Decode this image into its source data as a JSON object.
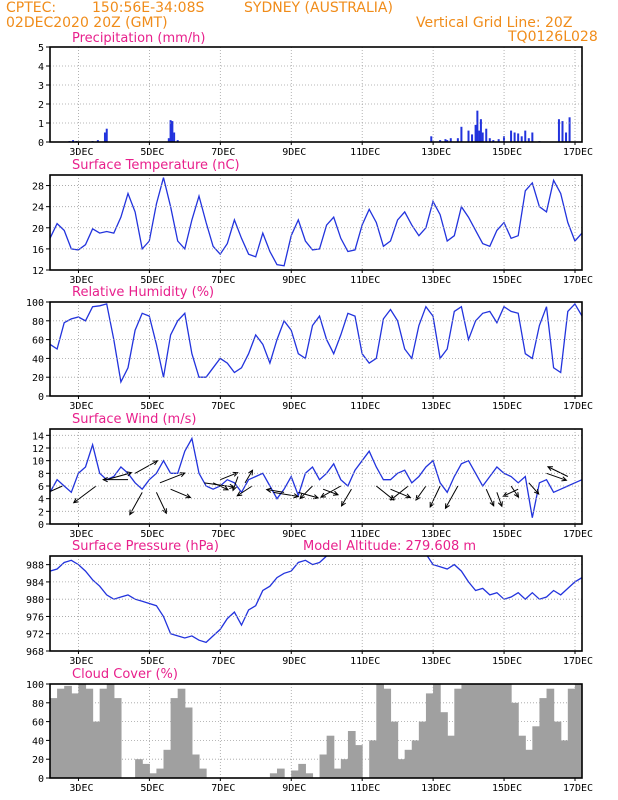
{
  "header": {
    "left1": "CPTEC:",
    "coords": "150:56E-34:08S",
    "location": "SYDNEY (AUSTRALIA)",
    "date": "02DEC2020 20Z (GMT)",
    "grid_note": "Vertical Grid Line: 20Z",
    "run_id": "TQ0126L028"
  },
  "colors": {
    "title": "#e8208c",
    "header": "#f08c1a",
    "series": "#2233dd",
    "cloud": "#a0a0a0",
    "grid": "#a0a0a0"
  },
  "chart_data": [
    {
      "type": "bar",
      "title": "Precipitation (mm/h)",
      "ylim": [
        0,
        5
      ],
      "yticks": [
        0,
        1,
        2,
        3,
        4,
        5
      ],
      "xlabels": [
        "3DEC",
        "5DEC",
        "7DEC",
        "9DEC",
        "11DEC",
        "13DEC",
        "15DEC",
        "17DEC"
      ],
      "x": [
        2.55,
        2.65,
        2.75,
        3.2,
        3.35,
        3.55,
        3.6,
        5.35,
        5.4,
        5.45,
        5.5,
        5.6,
        12.75,
        13.0,
        13.15,
        13.2,
        13.3,
        13.5,
        13.6,
        13.8,
        13.9,
        14.0,
        14.05,
        14.1,
        14.15,
        14.2,
        14.3,
        14.4,
        14.5,
        14.65,
        14.8,
        15.0,
        15.1,
        15.2,
        15.3,
        15.4,
        15.5,
        15.6,
        15.8,
        16.35,
        16.45,
        16.55,
        16.65
      ],
      "values": [
        0.05,
        0.1,
        0.05,
        0.05,
        0.1,
        0.5,
        0.7,
        0.2,
        1.15,
        1.1,
        0.5,
        0.1,
        0.3,
        0.1,
        0.15,
        0.1,
        0.2,
        0.2,
        0.8,
        0.6,
        0.4,
        0.9,
        1.65,
        0.6,
        1.2,
        0.5,
        0.7,
        0.2,
        0.1,
        0.15,
        0.3,
        0.6,
        0.5,
        0.45,
        0.3,
        0.6,
        0.2,
        0.5,
        0.05,
        1.2,
        1.1,
        0.5,
        1.3
      ]
    },
    {
      "type": "line",
      "title": "Surface Temperature (nC)",
      "ylim": [
        12,
        30
      ],
      "yticks": [
        12,
        16,
        20,
        24,
        28
      ],
      "xlabels": [
        "3DEC",
        "5DEC",
        "7DEC",
        "9DEC",
        "11DEC",
        "13DEC",
        "15DEC",
        "17DEC"
      ],
      "x": [
        2.0,
        2.2,
        2.4,
        2.6,
        2.8,
        3.0,
        3.2,
        3.4,
        3.6,
        3.8,
        4.0,
        4.2,
        4.4,
        4.6,
        4.8,
        5.0,
        5.2,
        5.4,
        5.6,
        5.8,
        6.0,
        6.2,
        6.4,
        6.6,
        6.8,
        7.0,
        7.2,
        7.4,
        7.6,
        7.8,
        8.0,
        8.2,
        8.4,
        8.6,
        8.8,
        9.0,
        9.2,
        9.4,
        9.6,
        9.8,
        10.0,
        10.2,
        10.4,
        10.6,
        10.8,
        11.0,
        11.2,
        11.4,
        11.6,
        11.8,
        12.0,
        12.2,
        12.4,
        12.6,
        12.8,
        13.0,
        13.2,
        13.4,
        13.6,
        13.8,
        14.0,
        14.2,
        14.4,
        14.6,
        14.8,
        15.0,
        15.2,
        15.4,
        15.6,
        15.8,
        16.0,
        16.2,
        16.4,
        16.6,
        16.8,
        17.0
      ],
      "values": [
        18.0,
        20.8,
        19.5,
        16.0,
        15.8,
        16.8,
        19.8,
        19.0,
        19.3,
        19.0,
        22.0,
        26.5,
        23.0,
        16.0,
        17.5,
        24.5,
        29.5,
        24.0,
        17.5,
        16.0,
        21.5,
        26.0,
        21.0,
        16.5,
        15.0,
        17.0,
        21.5,
        18.0,
        15.0,
        14.5,
        19.0,
        15.5,
        13.0,
        12.8,
        18.5,
        21.5,
        17.5,
        15.8,
        16.0,
        20.5,
        22.0,
        18.0,
        15.5,
        15.8,
        20.5,
        23.5,
        21.0,
        16.5,
        17.5,
        21.5,
        23.0,
        20.5,
        18.5,
        20.0,
        25.0,
        22.5,
        17.5,
        18.5,
        24.0,
        22.0,
        19.5,
        17.0,
        16.5,
        19.5,
        21.0,
        18.0,
        18.5,
        27.0,
        28.5,
        24.0,
        23.0,
        29.0,
        26.5,
        21.0,
        17.5,
        19.0
      ]
    },
    {
      "type": "line",
      "title": "Relative Humidity (%)",
      "ylim": [
        0,
        100
      ],
      "yticks": [
        0,
        20,
        40,
        60,
        80,
        100
      ],
      "xlabels": [
        "3DEC",
        "5DEC",
        "7DEC",
        "9DEC",
        "11DEC",
        "13DEC",
        "15DEC",
        "17DEC"
      ],
      "x": [
        2.0,
        2.2,
        2.4,
        2.6,
        2.8,
        3.0,
        3.2,
        3.4,
        3.6,
        3.8,
        4.0,
        4.2,
        4.4,
        4.6,
        4.8,
        5.0,
        5.2,
        5.4,
        5.6,
        5.8,
        6.0,
        6.2,
        6.4,
        6.6,
        6.8,
        7.0,
        7.2,
        7.4,
        7.6,
        7.8,
        8.0,
        8.2,
        8.4,
        8.6,
        8.8,
        9.0,
        9.2,
        9.4,
        9.6,
        9.8,
        10.0,
        10.2,
        10.4,
        10.6,
        10.8,
        11.0,
        11.2,
        11.4,
        11.6,
        11.8,
        12.0,
        12.2,
        12.4,
        12.6,
        12.8,
        13.0,
        13.2,
        13.4,
        13.6,
        13.8,
        14.0,
        14.2,
        14.4,
        14.6,
        14.8,
        15.0,
        15.2,
        15.4,
        15.6,
        15.8,
        16.0,
        16.2,
        16.4,
        16.6,
        16.8,
        17.0
      ],
      "values": [
        55.0,
        50.0,
        78.0,
        82.0,
        84.0,
        80.0,
        95.0,
        96.0,
        98.0,
        60.0,
        15.0,
        30.0,
        70.0,
        88.0,
        85.0,
        55.0,
        20.0,
        65.0,
        80.0,
        88.0,
        45.0,
        20.0,
        20.0,
        30.0,
        40.0,
        35.0,
        25.0,
        30.0,
        45.0,
        65.0,
        55.0,
        35.0,
        60.0,
        80.0,
        70.0,
        45.0,
        40.0,
        75.0,
        85.0,
        60.0,
        45.0,
        65.0,
        88.0,
        85.0,
        45.0,
        35.0,
        40.0,
        82.0,
        92.0,
        80.0,
        50.0,
        40.0,
        75.0,
        95.0,
        85.0,
        40.0,
        50.0,
        90.0,
        95.0,
        60.0,
        80.0,
        88.0,
        90.0,
        78.0,
        95.0,
        90.0,
        88.0,
        45.0,
        40.0,
        75.0,
        95.0,
        30.0,
        25.0,
        90.0,
        98.0,
        85.0
      ]
    },
    {
      "type": "line",
      "title": "Surface Wind (m/s)",
      "ylim": [
        0,
        15
      ],
      "yticks": [
        0,
        2,
        4,
        6,
        8,
        10,
        12,
        14
      ],
      "xlabels": [
        "3DEC",
        "5DEC",
        "7DEC",
        "9DEC",
        "11DEC",
        "13DEC",
        "15DEC",
        "17DEC"
      ],
      "x": [
        2.0,
        2.2,
        2.4,
        2.6,
        2.8,
        3.0,
        3.2,
        3.4,
        3.6,
        3.8,
        4.0,
        4.2,
        4.4,
        4.6,
        4.8,
        5.0,
        5.2,
        5.4,
        5.6,
        5.8,
        6.0,
        6.2,
        6.4,
        6.6,
        6.8,
        7.0,
        7.2,
        7.4,
        7.6,
        7.8,
        8.0,
        8.2,
        8.4,
        8.6,
        8.8,
        9.0,
        9.2,
        9.4,
        9.6,
        9.8,
        10.0,
        10.2,
        10.4,
        10.6,
        10.8,
        11.0,
        11.2,
        11.4,
        11.6,
        11.8,
        12.0,
        12.2,
        12.4,
        12.6,
        12.8,
        13.0,
        13.2,
        13.4,
        13.6,
        13.8,
        14.0,
        14.2,
        14.4,
        14.6,
        14.8,
        15.0,
        15.2,
        15.4,
        15.6,
        15.8,
        16.0,
        16.2,
        16.4,
        16.6,
        16.8,
        17.0
      ],
      "values": [
        5.0,
        7.0,
        6.0,
        5.0,
        8.0,
        9.0,
        12.5,
        8.0,
        7.0,
        7.5,
        9.0,
        8.0,
        6.5,
        5.5,
        7.0,
        8.0,
        10.0,
        8.0,
        8.0,
        11.5,
        13.5,
        8.0,
        6.0,
        5.5,
        6.0,
        7.0,
        6.5,
        5.0,
        7.0,
        7.5,
        8.0,
        6.0,
        4.0,
        5.5,
        7.5,
        4.5,
        8.0,
        9.0,
        7.0,
        8.0,
        9.5,
        7.0,
        6.0,
        8.5,
        10.0,
        11.5,
        9.0,
        7.0,
        7.0,
        8.0,
        8.5,
        6.5,
        7.5,
        9.0,
        10.0,
        6.5,
        5.0,
        7.5,
        9.5,
        10.0,
        8.0,
        6.0,
        7.5,
        9.0,
        8.0,
        7.5,
        6.5,
        7.5,
        1.0,
        6.5,
        7.0,
        5.0,
        5.5,
        6.0,
        6.5,
        7.0
      ],
      "arrows": [
        {
          "x": 2.35,
          "y": 6.0,
          "dx": -1.0,
          "dy": -0.8
        },
        {
          "x": 3.3,
          "y": 6.0,
          "dx": -0.9,
          "dy": -1.2
        },
        {
          "x": 3.6,
          "y": 7.0,
          "dx": 1.0,
          "dy": 0.5
        },
        {
          "x": 4.2,
          "y": 7.0,
          "dx": -1.0,
          "dy": 0.0
        },
        {
          "x": 4.4,
          "y": 8.0,
          "dx": 0.9,
          "dy": 0.9
        },
        {
          "x": 4.6,
          "y": 5.0,
          "dx": -0.5,
          "dy": -1.6
        },
        {
          "x": 5.0,
          "y": 5.0,
          "dx": 0.4,
          "dy": -1.5
        },
        {
          "x": 5.1,
          "y": 6.5,
          "dx": 1.0,
          "dy": 0.7
        },
        {
          "x": 5.4,
          "y": 5.5,
          "dx": 0.8,
          "dy": -0.6
        },
        {
          "x": 6.35,
          "y": 6.5,
          "dx": 1.2,
          "dy": -0.3
        },
        {
          "x": 6.6,
          "y": 6.5,
          "dx": 0.6,
          "dy": -0.5
        },
        {
          "x": 6.8,
          "y": 7.0,
          "dx": 0.7,
          "dy": 0.5
        },
        {
          "x": 7.3,
          "y": 7.5,
          "dx": -0.2,
          "dy": -1.0
        },
        {
          "x": 7.5,
          "y": 6.5,
          "dx": 0.3,
          "dy": 0.9
        },
        {
          "x": 7.7,
          "y": 6.0,
          "dx": -0.6,
          "dy": -0.7
        },
        {
          "x": 8.3,
          "y": 5.0,
          "dx": 1.0,
          "dy": -0.3
        },
        {
          "x": 8.6,
          "y": 5.0,
          "dx": -0.7,
          "dy": 0.2
        },
        {
          "x": 9.0,
          "y": 5.0,
          "dx": 0.8,
          "dy": -0.4
        },
        {
          "x": 9.4,
          "y": 6.0,
          "dx": -0.5,
          "dy": -0.9
        },
        {
          "x": 9.7,
          "y": 5.5,
          "dx": 0.6,
          "dy": -0.4
        },
        {
          "x": 10.2,
          "y": 6.0,
          "dx": -0.8,
          "dy": -0.8
        },
        {
          "x": 10.5,
          "y": 5.5,
          "dx": -0.4,
          "dy": -1.2
        },
        {
          "x": 11.2,
          "y": 6.0,
          "dx": 0.7,
          "dy": -1.0
        },
        {
          "x": 11.6,
          "y": 5.5,
          "dx": 0.8,
          "dy": -0.6
        },
        {
          "x": 12.1,
          "y": 6.0,
          "dx": -0.7,
          "dy": -1.0
        },
        {
          "x": 12.6,
          "y": 6.0,
          "dx": -0.4,
          "dy": -1.0
        },
        {
          "x": 13.0,
          "y": 6.0,
          "dx": -0.4,
          "dy": -1.5
        },
        {
          "x": 13.5,
          "y": 6.0,
          "dx": -0.5,
          "dy": -1.6
        },
        {
          "x": 14.3,
          "y": 5.5,
          "dx": 0.3,
          "dy": -1.2
        },
        {
          "x": 14.6,
          "y": 5.0,
          "dx": 0.2,
          "dy": -1.0
        },
        {
          "x": 15.0,
          "y": 6.0,
          "dx": 0.3,
          "dy": -0.8
        },
        {
          "x": 15.2,
          "y": 5.5,
          "dx": -0.6,
          "dy": -0.5
        },
        {
          "x": 15.5,
          "y": 6.5,
          "dx": 0.4,
          "dy": -0.8
        },
        {
          "x": 16.0,
          "y": 8.0,
          "dx": 0.8,
          "dy": -0.5
        },
        {
          "x": 16.6,
          "y": 7.5,
          "dx": -0.8,
          "dy": 0.7
        }
      ]
    },
    {
      "type": "line",
      "title": "Surface Pressure (hPa)",
      "subtitle": "Model Altitude: 279.608 m",
      "ylim": [
        968,
        990
      ],
      "yticks": [
        968,
        972,
        976,
        980,
        984,
        988
      ],
      "xlabels": [
        "3DEC",
        "5DEC",
        "7DEC",
        "9DEC",
        "11DEC",
        "13DEC",
        "15DEC",
        "17DEC"
      ],
      "x": [
        2.0,
        2.2,
        2.4,
        2.6,
        2.8,
        3.0,
        3.2,
        3.4,
        3.6,
        3.8,
        4.0,
        4.2,
        4.4,
        4.6,
        4.8,
        5.0,
        5.2,
        5.4,
        5.6,
        5.8,
        6.0,
        6.2,
        6.4,
        6.6,
        6.8,
        7.0,
        7.2,
        7.4,
        7.6,
        7.8,
        8.0,
        8.2,
        8.4,
        8.6,
        8.8,
        9.0,
        9.2,
        9.4,
        9.6,
        9.8,
        10.0,
        null,
        12.6,
        12.8,
        13.0,
        13.2,
        13.4,
        13.6,
        13.8,
        14.0,
        14.2,
        14.4,
        14.6,
        14.8,
        15.0,
        15.2,
        15.4,
        15.6,
        15.8,
        16.0,
        16.2,
        16.4,
        16.6,
        16.8,
        17.0
      ],
      "values": [
        986.5,
        987.0,
        988.5,
        989.0,
        988.0,
        986.5,
        984.5,
        983.0,
        981.0,
        980.0,
        980.5,
        981.0,
        980.0,
        979.5,
        979.0,
        978.5,
        976.0,
        972.0,
        971.5,
        971.0,
        971.5,
        970.5,
        970.0,
        971.5,
        973.0,
        975.5,
        977.0,
        974.0,
        977.5,
        978.5,
        982.0,
        983.0,
        985.0,
        986.0,
        986.5,
        988.5,
        989.0,
        988.0,
        988.5,
        990.0,
        990.5,
        null,
        990.5,
        988.0,
        987.5,
        987.0,
        988.0,
        986.5,
        984.0,
        982.0,
        982.5,
        981.0,
        981.5,
        980.0,
        980.5,
        981.5,
        980.0,
        981.5,
        980.0,
        980.5,
        982.0,
        981.0,
        982.5,
        984.0,
        985.0
      ]
    },
    {
      "type": "bar",
      "title": "Cloud Cover (%)",
      "ylim": [
        0,
        100
      ],
      "yticks": [
        0,
        20,
        40,
        60,
        80,
        100
      ],
      "xlabels": [
        "3DEC",
        "5DEC",
        "7DEC",
        "9DEC",
        "11DEC",
        "13DEC",
        "15DEC",
        "17DEC"
      ],
      "x": [
        2.0,
        2.2,
        2.4,
        2.6,
        2.8,
        3.0,
        3.2,
        3.4,
        3.6,
        3.8,
        4.0,
        4.2,
        4.4,
        4.6,
        4.8,
        5.0,
        5.2,
        5.4,
        5.6,
        5.8,
        6.0,
        6.2,
        6.4,
        6.6,
        6.8,
        7.0,
        7.2,
        7.4,
        7.6,
        7.8,
        8.0,
        8.2,
        8.4,
        8.6,
        8.8,
        9.0,
        9.2,
        9.4,
        9.6,
        9.8,
        10.0,
        10.2,
        10.4,
        10.6,
        10.8,
        11.0,
        11.2,
        11.4,
        11.6,
        11.8,
        12.0,
        12.2,
        12.4,
        12.6,
        12.8,
        13.0,
        13.2,
        13.4,
        13.6,
        13.8,
        14.0,
        14.2,
        14.4,
        14.6,
        14.8,
        15.0,
        15.2,
        15.4,
        15.6,
        15.8,
        16.0,
        16.2,
        16.4,
        16.6,
        16.8
      ],
      "values": [
        85.0,
        95.0,
        98.0,
        90.0,
        100.0,
        95.0,
        60.0,
        95.0,
        100.0,
        85.0,
        0.0,
        0.0,
        20.0,
        15.0,
        5.0,
        10.0,
        30.0,
        85.0,
        95.0,
        75.0,
        25.0,
        10.0,
        0.0,
        0.0,
        0.0,
        0.0,
        0.0,
        0.0,
        0.0,
        0.0,
        0.0,
        5.0,
        10.0,
        0.0,
        8.0,
        15.0,
        5.0,
        0.0,
        25.0,
        45.0,
        10.0,
        20.0,
        50.0,
        35.0,
        0.0,
        40.0,
        100.0,
        95.0,
        60.0,
        20.0,
        30.0,
        40.0,
        60.0,
        90.0,
        100.0,
        70.0,
        45.0,
        95.0,
        100.0,
        100.0,
        100.0,
        100.0,
        100.0,
        100.0,
        100.0,
        80.0,
        45.0,
        30.0,
        55.0,
        85.0,
        95.0,
        60.0,
        40.0,
        95.0,
        100.0
      ]
    }
  ]
}
